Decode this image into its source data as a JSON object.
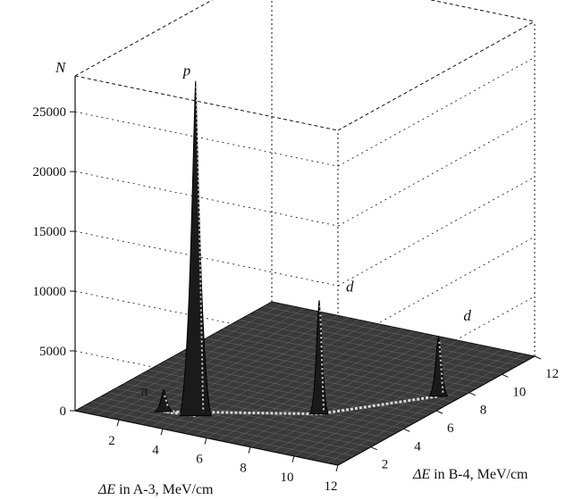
{
  "chart_data": {
    "type": "surface3d",
    "zlabel": "N",
    "xlabel_prefix": "ΔE",
    "xlabel_suffix": " in A-3, MeV/cm",
    "ylabel_prefix": "ΔE",
    "ylabel_suffix": " in B-4, MeV/cm",
    "x_ticks": [
      "2",
      "4",
      "6",
      "8",
      "10",
      "12"
    ],
    "y_ticks": [
      "2",
      "4",
      "6",
      "8",
      "10",
      "12"
    ],
    "z_ticks": [
      "0",
      "5000",
      "10000",
      "15000",
      "20000",
      "25000"
    ],
    "xlim": [
      0,
      12
    ],
    "ylim": [
      0,
      12
    ],
    "zlim": [
      0,
      28000
    ],
    "peaks": [
      {
        "label": "p",
        "x": 4.3,
        "y": 1.6,
        "height": 28000
      },
      {
        "label": "π",
        "x": 3.0,
        "y": 1.4,
        "height": 1800
      },
      {
        "label": "d",
        "x": 8.3,
        "y": 3.8,
        "height": 9500
      },
      {
        "label": "d",
        "x": 11.2,
        "y": 7.2,
        "height": 5000
      }
    ],
    "grid": true
  }
}
